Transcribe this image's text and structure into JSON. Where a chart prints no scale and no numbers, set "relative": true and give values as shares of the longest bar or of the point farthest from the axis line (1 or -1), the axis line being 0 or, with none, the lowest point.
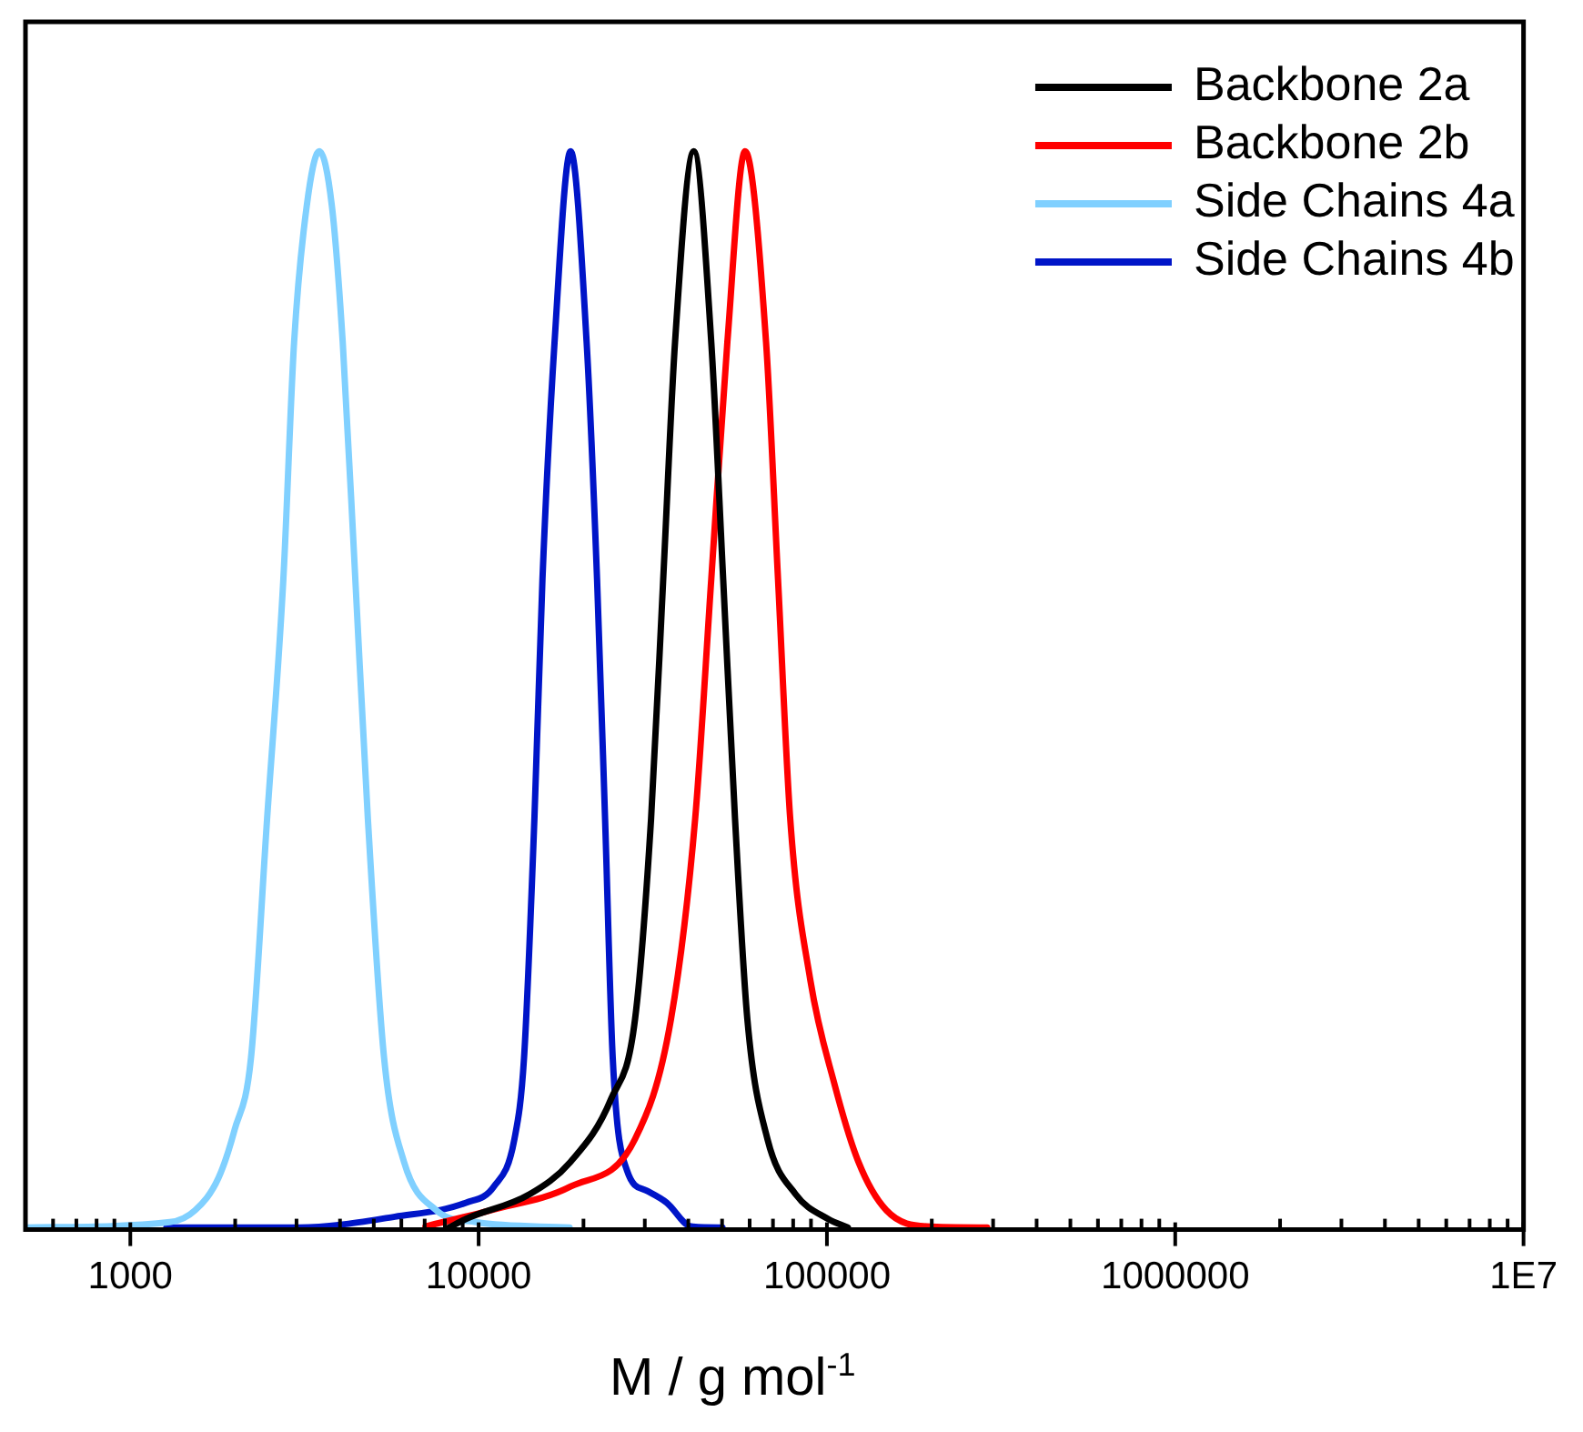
{
  "chart_data": {
    "type": "line",
    "xlabel": "M / g mol$^{-1}$",
    "relative": true,
    "log": "x",
    "legend": "top right",
    "marker": "none",
    "line_style": "solid",
    "grid": false,
    "xlim": [
      500,
      10000000
    ],
    "xticks": [
      {
        "value": 500,
        "label": null
      },
      {
        "value": 600,
        "label": null
      },
      {
        "value": 700,
        "label": null
      },
      {
        "value": 800,
        "label": null
      },
      {
        "value": 900,
        "label": null
      },
      1000,
      {
        "value": 2000,
        "label": null
      },
      {
        "value": 3000,
        "label": null
      },
      {
        "value": 4000,
        "label": null
      },
      {
        "value": 5000,
        "label": null
      },
      {
        "value": 6000,
        "label": null
      },
      {
        "value": 7000,
        "label": null
      },
      {
        "value": 8000,
        "label": null
      },
      {
        "value": 9000,
        "label": null
      },
      10000,
      {
        "value": 20000,
        "label": null
      },
      {
        "value": 30000,
        "label": null
      },
      {
        "value": 40000,
        "label": null
      },
      {
        "value": 50000,
        "label": null
      },
      {
        "value": 60000,
        "label": null
      },
      {
        "value": 70000,
        "label": null
      },
      {
        "value": 80000,
        "label": null
      },
      {
        "value": 90000,
        "label": null
      },
      100000,
      {
        "value": 200000,
        "label": null
      },
      {
        "value": 300000,
        "label": null
      },
      {
        "value": 400000,
        "label": null
      },
      {
        "value": 500000,
        "label": null
      },
      {
        "value": 600000,
        "label": null
      },
      {
        "value": 700000,
        "label": null
      },
      {
        "value": 800000,
        "label": null
      },
      {
        "value": 900000,
        "label": null
      },
      1000000,
      {
        "value": 2000000,
        "label": null
      },
      {
        "value": 3000000,
        "label": null
      },
      {
        "value": 4000000,
        "label": null
      },
      {
        "value": 5000000,
        "label": null
      },
      {
        "value": 6000000,
        "label": null
      },
      {
        "value": 7000000,
        "label": null
      },
      {
        "value": 8000000,
        "label": null
      },
      {
        "value": 9000000,
        "label": null
      },
      {
        "value": 10000000,
        "label": "1E7"
      }
    ],
    "series": [
      {
        "name": "Backbone 2a",
        "color": "#000000",
        "x": [
          8222,
          9206,
          14030,
          18370,
          23990,
          28120,
          31270,
          33880,
          36640,
          41480,
          46550,
          50370,
          54470,
          59100,
          67500,
          81230,
          100700,
          114800
        ],
        "values": [
          0.002,
          0.01,
          0.033,
          0.063,
          0.121,
          0.195,
          0.381,
          0.603,
          0.823,
          1,
          0.823,
          0.603,
          0.381,
          0.195,
          0.084,
          0.033,
          0.01,
          0.002
        ]
      },
      {
        "name": "Backbone 2b",
        "color": "#ff0000",
        "x": [
          7040,
          10810,
          18370,
          28120,
          35660,
          41850,
          46550,
          51780,
          58210,
          66870,
          72380,
          78450,
          89540,
          104900,
          123100,
          148100,
          193700,
          288500
        ],
        "values": [
          0.003,
          0.018,
          0.04,
          0.084,
          0.195,
          0.381,
          0.603,
          0.823,
          1,
          0.823,
          0.603,
          0.381,
          0.232,
          0.136,
          0.063,
          0.018,
          0.003,
          0.002
        ]
      },
      {
        "name": "Side Chains 4a",
        "color": "#80d0ff",
        "x": [
          500,
          1299,
          1535,
          1791,
          1994,
          2220,
          2470,
          2750,
          2953,
          3209,
          3488,
          3791,
          4072,
          4426,
          4809,
          5354,
          6105,
          7563,
          9818,
          18240
        ],
        "values": [
          0.002,
          0.007,
          0.018,
          0.048,
          0.093,
          0.159,
          0.381,
          0.603,
          0.823,
          0.949,
          1,
          0.949,
          0.823,
          0.603,
          0.381,
          0.159,
          0.063,
          0.018,
          0.007,
          0.002
        ]
      },
      {
        "name": "Side Chains 4b",
        "color": "#0015c8",
        "x": [
          1269,
          3062,
          5750,
          9206,
          11060,
          12670,
          13500,
          14460,
          15250,
          16520,
          18370,
          20420,
          21880,
          23070,
          24270,
          26660,
          30430,
          34680,
          40740,
          50120
        ],
        "values": [
          0.002,
          0.002,
          0.012,
          0.025,
          0.04,
          0.084,
          0.159,
          0.381,
          0.603,
          0.823,
          1,
          0.823,
          0.603,
          0.381,
          0.159,
          0.055,
          0.036,
          0.025,
          0.003,
          0.002
        ]
      }
    ]
  }
}
